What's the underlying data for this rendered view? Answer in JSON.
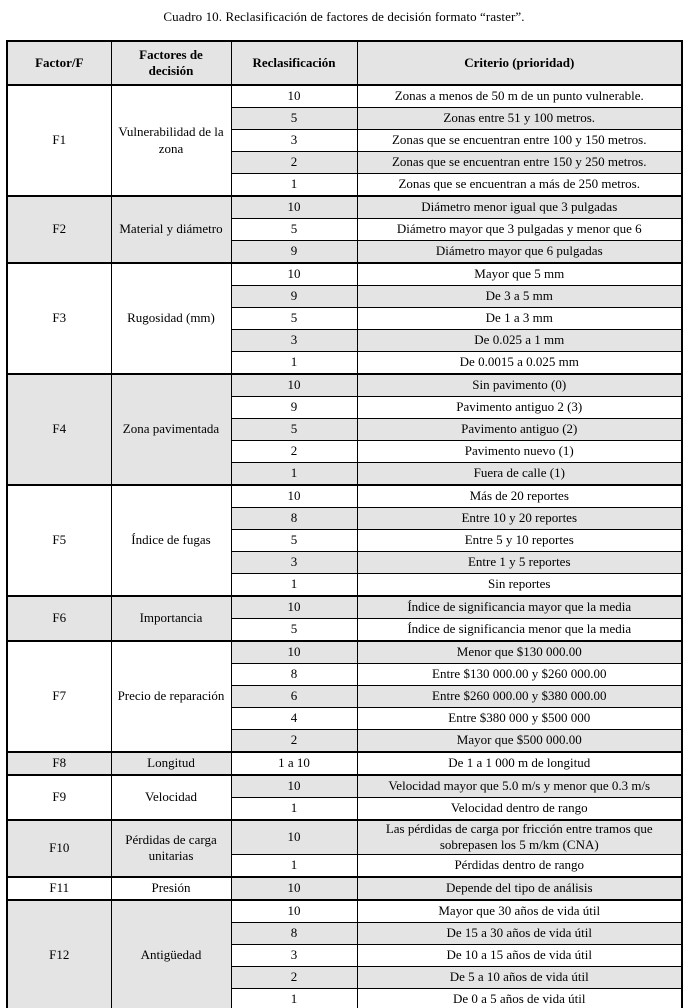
{
  "title": "Cuadro 10. Reclasificación de factores de decisión formato “raster”.",
  "colors": {
    "row_shade": "#e4e4e4",
    "border": "#000000",
    "page_bg": "#ffffff"
  },
  "table": {
    "headers": [
      "Factor/F",
      "Factores de decisión",
      "Reclasificación",
      "Criterio (prioridad)"
    ],
    "groups": [
      {
        "factor": "F1",
        "decision": "Vulnerabilidad de la zona",
        "rows": [
          {
            "reclass": "10",
            "criterio": "Zonas a menos de 50 m de un punto vulnerable."
          },
          {
            "reclass": "5",
            "criterio": "Zonas entre 51 y 100 metros."
          },
          {
            "reclass": "3",
            "criterio": "Zonas que se encuentran entre 100 y 150 metros."
          },
          {
            "reclass": "2",
            "criterio": "Zonas que se encuentran entre 150 y 250 metros."
          },
          {
            "reclass": "1",
            "criterio": "Zonas que se encuentran a más de 250 metros."
          }
        ]
      },
      {
        "factor": "F2",
        "decision": "Material y diámetro",
        "rows": [
          {
            "reclass": "10",
            "criterio": "Diámetro menor igual que 3 pulgadas"
          },
          {
            "reclass": "5",
            "criterio": "Diámetro mayor que 3 pulgadas y menor que 6"
          },
          {
            "reclass": "9",
            "criterio": "Diámetro mayor que 6 pulgadas"
          }
        ]
      },
      {
        "factor": "F3",
        "decision": "Rugosidad (mm)",
        "rows": [
          {
            "reclass": "10",
            "criterio": "Mayor que 5 mm"
          },
          {
            "reclass": "9",
            "criterio": "De 3 a 5 mm"
          },
          {
            "reclass": "5",
            "criterio": "De 1 a 3 mm"
          },
          {
            "reclass": "3",
            "criterio": "De 0.025 a 1 mm"
          },
          {
            "reclass": "1",
            "criterio": "De 0.0015 a 0.025 mm"
          }
        ]
      },
      {
        "factor": "F4",
        "decision": "Zona pavimentada",
        "rows": [
          {
            "reclass": "10",
            "criterio": "Sin pavimento (0)"
          },
          {
            "reclass": "9",
            "criterio": "Pavimento antiguo 2 (3)"
          },
          {
            "reclass": "5",
            "criterio": "Pavimento antiguo (2)"
          },
          {
            "reclass": "2",
            "criterio": "Pavimento nuevo (1)"
          },
          {
            "reclass": "1",
            "criterio": "Fuera de calle (1)"
          }
        ]
      },
      {
        "factor": "F5",
        "decision": "Índice de fugas",
        "rows": [
          {
            "reclass": "10",
            "criterio": "Más de 20 reportes"
          },
          {
            "reclass": "8",
            "criterio": "Entre 10 y 20 reportes"
          },
          {
            "reclass": "5",
            "criterio": "Entre 5 y 10 reportes"
          },
          {
            "reclass": "3",
            "criterio": "Entre 1 y 5 reportes"
          },
          {
            "reclass": "1",
            "criterio": "Sin reportes"
          }
        ]
      },
      {
        "factor": "F6",
        "decision": "Importancia",
        "rows": [
          {
            "reclass": "10",
            "criterio": "Índice de significancia mayor que la media"
          },
          {
            "reclass": "5",
            "criterio": "Índice de significancia menor que la media"
          }
        ]
      },
      {
        "factor": "F7",
        "decision": "Precio de reparación",
        "rows": [
          {
            "reclass": "10",
            "criterio": "Menor que $130 000.00"
          },
          {
            "reclass": "8",
            "criterio": "Entre $130 000.00 y $260 000.00"
          },
          {
            "reclass": "6",
            "criterio": "Entre $260 000.00 y $380 000.00"
          },
          {
            "reclass": "4",
            "criterio": "Entre $380 000 y $500 000"
          },
          {
            "reclass": "2",
            "criterio": "Mayor que $500 000.00"
          }
        ]
      },
      {
        "factor": "F8",
        "decision": "Longitud",
        "rows": [
          {
            "reclass": "1 a 10",
            "criterio": "De 1 a 1 000 m de longitud"
          }
        ]
      },
      {
        "factor": "F9",
        "decision": "Velocidad",
        "rows": [
          {
            "reclass": "10",
            "criterio": "Velocidad mayor que 5.0 m/s y menor que 0.3 m/s"
          },
          {
            "reclass": "1",
            "criterio": "Velocidad dentro de rango"
          }
        ]
      },
      {
        "factor": "F10",
        "decision": "Pérdidas de carga unitarias",
        "rows": [
          {
            "reclass": "10",
            "criterio": "Las pérdidas de carga por fricción entre tramos que sobrepasen los 5 m/km (CNA)"
          },
          {
            "reclass": "1",
            "criterio": "Pérdidas dentro de rango"
          }
        ]
      },
      {
        "factor": "F11",
        "decision": "Presión",
        "rows": [
          {
            "reclass": "10",
            "criterio": "Depende del tipo de análisis"
          }
        ]
      },
      {
        "factor": "F12",
        "decision": "Antigüedad",
        "rows": [
          {
            "reclass": "10",
            "criterio": "Mayor que 30 años de vida útil"
          },
          {
            "reclass": "8",
            "criterio": "De 15 a 30 años de vida útil"
          },
          {
            "reclass": "3",
            "criterio": "De 10 a 15 años de vida útil"
          },
          {
            "reclass": "2",
            "criterio": "De 5 a 10 años de vida útil"
          },
          {
            "reclass": "1",
            "criterio": "De 0 a 5 años de vida útil"
          }
        ]
      }
    ]
  }
}
